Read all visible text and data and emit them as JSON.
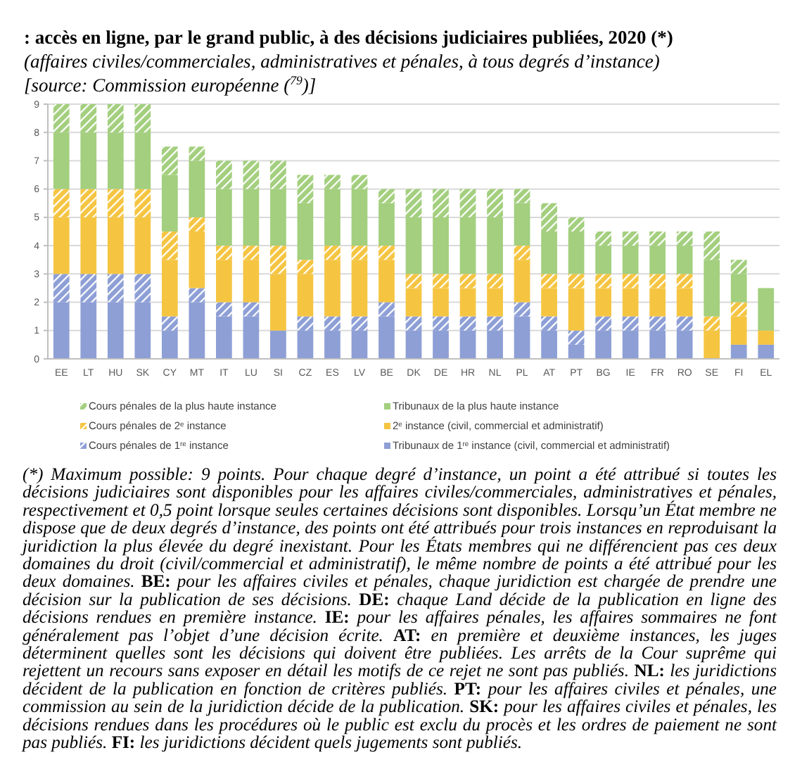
{
  "chart_data": {
    "type": "bar",
    "stacked": true,
    "title": ": accès en ligne, par le grand public, à des décisions judiciaires publiées, 2020 (*)",
    "subtitle": "(affaires civiles/commerciales, administratives et pénales, à tous degrés d’instance)",
    "annotations": [
      "[source: Commission européenne ($^{79}$)]",
      "(*) Maximum possible: 9 points. Pour chaque degré d’instance, un point a été attribué si toutes les décisions judiciaires sont disponibles pour les affaires civiles/commerciales, administratives et pénales, respectivement et 0,5 point lorsque seules certaines décisions sont disponibles. Lorsqu’un État membre ne dispose que de deux degrés d’instance, des points ont été attribués pour trois instances en reproduisant la juridiction la plus élevée du degré inexistant. Pour les États membres qui ne différencient pas ces deux domaines du droit (civil/commercial et administratif), le même nombre de points a été attribué pour les deux domaines. BE: pour les affaires civiles et pénales, chaque juridiction est chargée de prendre une décision sur la publication de ses décisions. DE: chaque Land décide de la publication en ligne des décisions rendues en première instance. IE: pour les affaires pénales, les affaires sommaires ne font généralement pas l’objet d’une décision écrite. AT: en première et deuxième instances, les juges déterminent quelles sont les décisions qui doivent être publiées. Les arrêts de la Cour suprême qui rejettent un recours sans exposer en détail les motifs de ce rejet ne sont pas publiés. NL: les juridictions décident de la publication en fonction de critères publiés. PT: pour les affaires civiles et pénales, une commission au sein de la juridiction décide de la publication. SK: pour les affaires civiles et pénales, les décisions rendues dans les procédures où le public est exclu du procès et les ordres de paiement ne sont pas publiés. FI: les juridictions décident quels jugements sont publiés."
    ],
    "categories": [
      "EE",
      "LT",
      "HU",
      "SK",
      "CY",
      "MT",
      "IT",
      "LU",
      "SI",
      "CZ",
      "ES",
      "LV",
      "BE",
      "DK",
      "DE",
      "HR",
      "NL",
      "PL",
      "AT",
      "PT",
      "BG",
      "IE",
      "FR",
      "RO",
      "SE",
      "FI",
      "EL"
    ],
    "series": [
      {
        "name": "Tribunaux de 1$^{re}$ instance (civil, commercial et administratif)",
        "color": "#8e9fd6",
        "values": [
          2,
          2,
          2,
          2,
          1,
          2,
          1.5,
          1.5,
          1,
          1,
          1,
          1,
          1.5,
          1,
          1,
          1,
          1,
          1.5,
          1,
          0.5,
          1,
          1,
          1,
          1,
          0,
          0.5,
          0.5
        ]
      },
      {
        "name": "Cours pénales de 1$^{re}$ instance",
        "color": "#8e9fd6",
        "values": [
          1,
          1,
          1,
          1,
          0.5,
          0.5,
          0.5,
          0.5,
          0,
          0.5,
          0.5,
          0.5,
          0.5,
          0.5,
          0.5,
          0.5,
          0.5,
          0.5,
          0.5,
          0.5,
          0.5,
          0.5,
          0.5,
          0.5,
          0,
          0,
          0
        ]
      },
      {
        "name": "2$^{e}$ instance (civil, commercial et administratif)",
        "color": "#f5c542",
        "values": [
          2,
          2,
          2,
          2,
          2,
          2,
          1.5,
          1.5,
          2,
          1.5,
          2,
          2,
          1.5,
          1,
          1,
          1,
          1,
          1.5,
          1,
          1.5,
          1,
          1,
          1,
          1,
          1,
          1,
          0.5
        ]
      },
      {
        "name": "Cours pénales de 2$^{e}$ instance",
        "color": "#f5c542",
        "values": [
          1,
          1,
          1,
          1,
          1,
          0.5,
          0.5,
          0.5,
          1,
          0.5,
          0.5,
          0.5,
          0.5,
          0.5,
          0.5,
          0.5,
          0.5,
          0.5,
          0.5,
          0.5,
          0.5,
          0.5,
          0.5,
          0.5,
          0.5,
          0.5,
          0
        ]
      },
      {
        "name": "Tribunaux de la plus haute instance",
        "color": "#a3cf7e",
        "values": [
          2,
          2,
          2,
          2,
          2,
          2,
          2,
          2,
          2,
          2,
          2,
          2,
          1.5,
          2,
          2,
          2,
          2,
          1.5,
          1.5,
          1.5,
          1,
          1,
          1,
          1,
          2,
          1,
          1.5
        ]
      },
      {
        "name": "Cours pénales de la plus haute instance",
        "color": "#a3cf7e",
        "values": [
          1,
          1,
          1,
          1,
          1,
          0.5,
          1,
          1,
          1,
          1,
          0.5,
          0.5,
          0.5,
          1,
          1,
          1,
          1,
          0.5,
          1,
          0.5,
          0.5,
          0.5,
          0.5,
          0.5,
          1,
          0.5,
          0
        ]
      }
    ],
    "ylim": [
      0,
      9
    ],
    "yticks": [
      0,
      1,
      2,
      3,
      4,
      5,
      6,
      7,
      8,
      9
    ],
    "grid": "y",
    "legend": "bottom"
  }
}
